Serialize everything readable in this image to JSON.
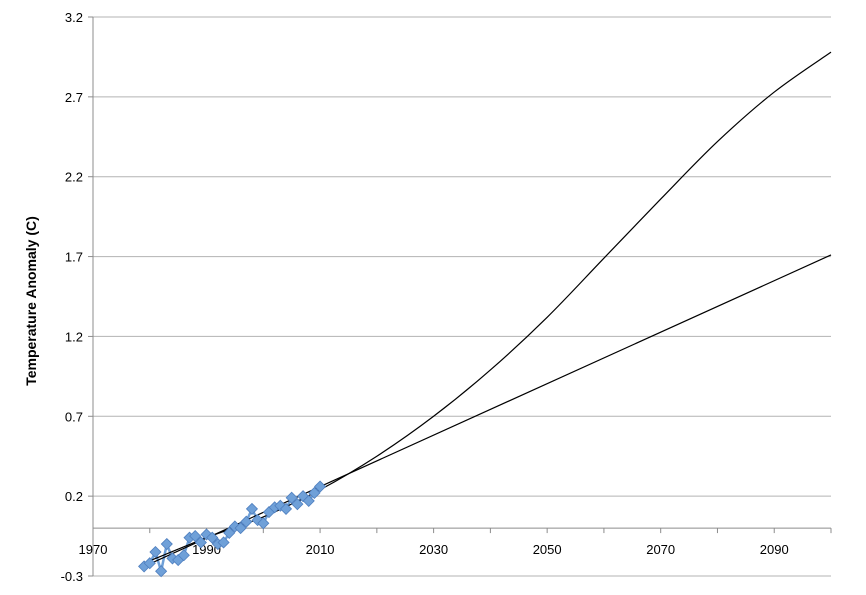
{
  "chart_data": {
    "type": "line",
    "title": "",
    "xlabel": "",
    "ylabel": "Temperature Anomaly (C)",
    "xlim": [
      1970,
      2100
    ],
    "ylim": [
      -0.3,
      3.2
    ],
    "x_ticks": [
      1970,
      1990,
      2010,
      2030,
      2050,
      2070,
      2090
    ],
    "x_tick_labels": [
      "1970",
      "1990",
      "2010",
      "2030",
      "2050",
      "2070",
      "2090"
    ],
    "y_ticks": [
      -0.3,
      0.2,
      0.7,
      1.2,
      1.7,
      2.2,
      2.7,
      3.2
    ],
    "y_tick_labels": [
      "-0.3",
      "0.2",
      "0.7",
      "1.2",
      "1.7",
      "2.2",
      "2.7",
      "3.2"
    ],
    "x_axis_at_y": 0,
    "grid": "horizontal",
    "legend": "none",
    "series": [
      {
        "kind": "observed",
        "marker": "diamond",
        "color": "#6fa0d8",
        "x": [
          1979,
          1980,
          1981,
          1982,
          1983,
          1984,
          1985,
          1986,
          1987,
          1988,
          1989,
          1990,
          1991,
          1992,
          1993,
          1994,
          1995,
          1996,
          1997,
          1998,
          1999,
          2000,
          2001,
          2002,
          2003,
          2004,
          2005,
          2006,
          2007,
          2008,
          2009,
          2010
        ],
        "values": [
          -0.24,
          -0.22,
          -0.15,
          -0.27,
          -0.1,
          -0.19,
          -0.2,
          -0.17,
          -0.06,
          -0.05,
          -0.09,
          -0.04,
          -0.06,
          -0.1,
          -0.09,
          -0.03,
          0.01,
          0.0,
          0.04,
          0.12,
          0.05,
          0.03,
          0.1,
          0.13,
          0.14,
          0.12,
          0.19,
          0.15,
          0.2,
          0.17,
          0.22,
          0.26
        ]
      },
      {
        "kind": "linear-trend",
        "color": "#000000",
        "x": [
          1979,
          2100
        ],
        "values": [
          -0.24,
          1.71
        ]
      },
      {
        "kind": "quadratic-trend",
        "color": "#000000",
        "x": [
          1979,
          1990,
          2000,
          2010,
          2020,
          2030,
          2040,
          2050,
          2060,
          2070,
          2080,
          2090,
          2100
        ],
        "values": [
          -0.22,
          -0.06,
          0.07,
          0.24,
          0.45,
          0.7,
          0.99,
          1.32,
          1.69,
          2.06,
          2.42,
          2.73,
          2.98
        ]
      }
    ]
  }
}
